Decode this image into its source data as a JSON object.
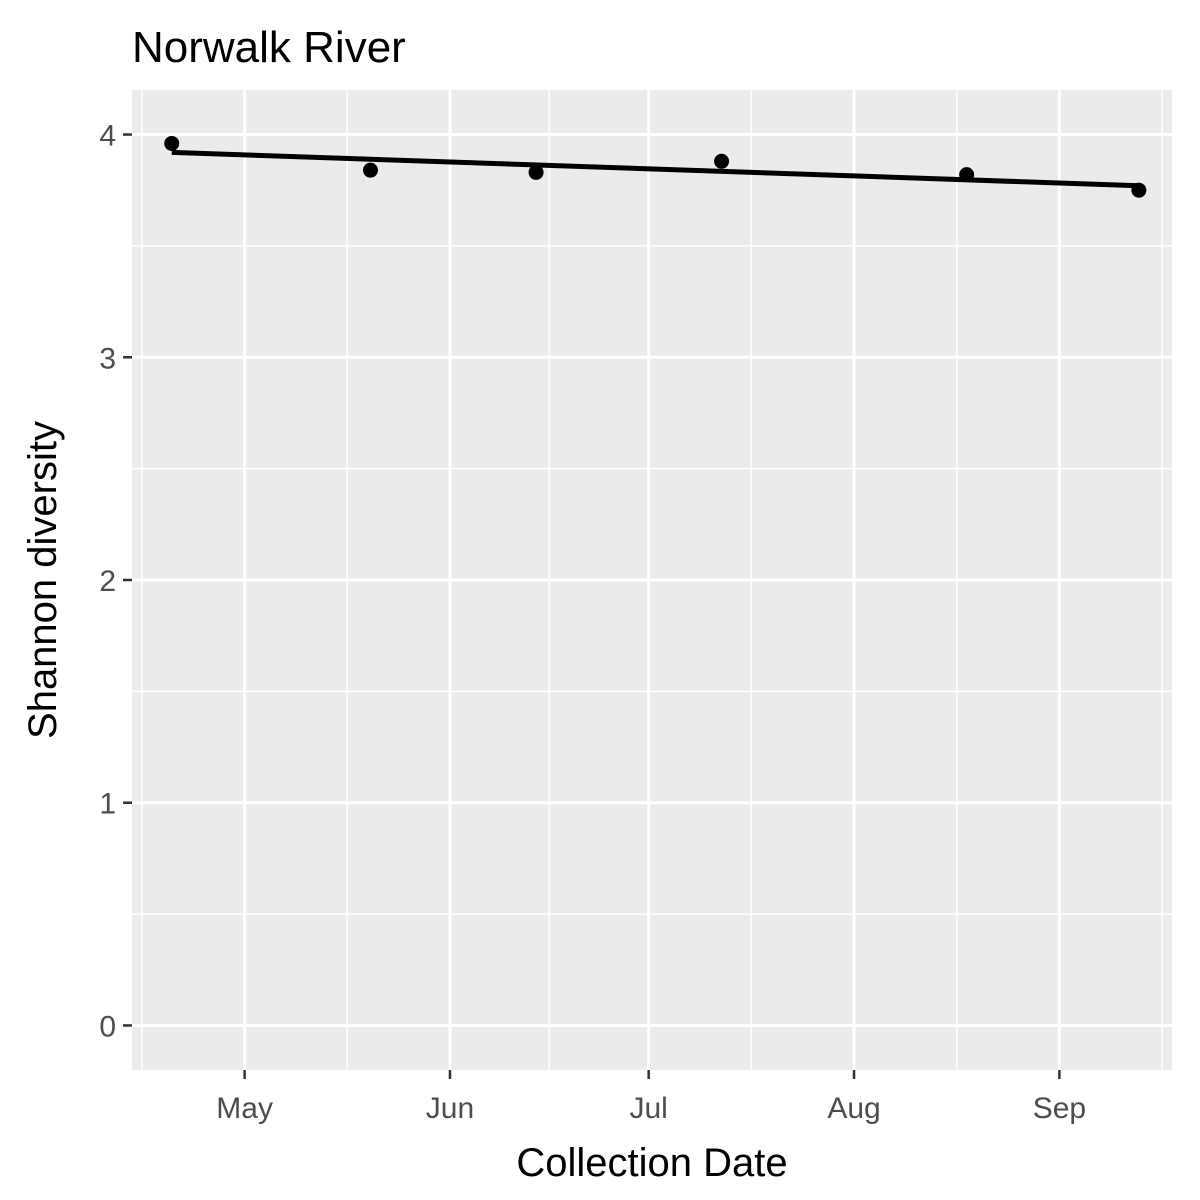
{
  "chart_data": {
    "type": "scatter",
    "title": "Norwalk River",
    "xlabel": "Collection Date",
    "ylabel": "Shannon diversity",
    "x_type": "date",
    "xlim": [
      "2018-04-14",
      "2018-09-18"
    ],
    "ylim": [
      -0.2,
      4.2
    ],
    "x_ticks": [
      {
        "date": "2018-05-01",
        "label": "May"
      },
      {
        "date": "2018-06-01",
        "label": "Jun"
      },
      {
        "date": "2018-07-01",
        "label": "Jul"
      },
      {
        "date": "2018-08-01",
        "label": "Aug"
      },
      {
        "date": "2018-09-01",
        "label": "Sep"
      }
    ],
    "y_ticks": [
      {
        "value": 0,
        "label": "0"
      },
      {
        "value": 1,
        "label": "1"
      },
      {
        "value": 2,
        "label": "2"
      },
      {
        "value": 3,
        "label": "3"
      },
      {
        "value": 4,
        "label": "4"
      }
    ],
    "points": [
      {
        "x": "2018-04-20",
        "y": 3.96
      },
      {
        "x": "2018-05-20",
        "y": 3.84
      },
      {
        "x": "2018-06-14",
        "y": 3.83
      },
      {
        "x": "2018-07-12",
        "y": 3.88
      },
      {
        "x": "2018-08-18",
        "y": 3.82
      },
      {
        "x": "2018-09-13",
        "y": 3.75
      }
    ],
    "trend_line": {
      "method": "linear",
      "start": {
        "x": "2018-04-20",
        "y": 3.92
      },
      "end": {
        "x": "2018-09-13",
        "y": 3.77
      }
    },
    "grid": true,
    "colors": {
      "panel": "#ebebeb",
      "grid": "#ffffff",
      "points": "#000000",
      "line": "#000000"
    }
  }
}
